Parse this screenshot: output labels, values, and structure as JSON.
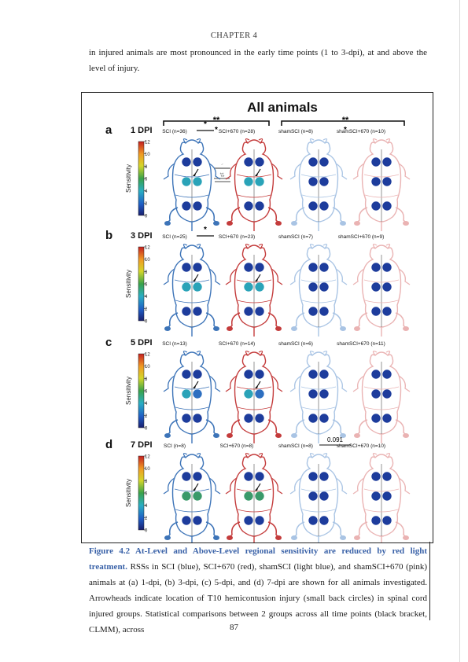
{
  "header": {
    "chapter": "CHAPTER 4"
  },
  "intro": {
    "text": "in injured animals are most pronounced in the early time points (1 to 3-dpi), at and above the level of injury."
  },
  "figure": {
    "title": "All animals",
    "top_signif": {
      "left_major": "**",
      "left_minor": "*",
      "right_major": "**",
      "right_minor": "*"
    },
    "colorbar": {
      "label": "Sensitivity",
      "ticks": [
        "12",
        "10",
        "8",
        "6",
        "4",
        "2",
        "0"
      ]
    },
    "panels": [
      {
        "letter": "a",
        "dpi": "1 DPI",
        "groups": [
          "SCI (n=36)",
          "SCI+670 (n=28)",
          "shamSCI (n=8)",
          "shamSCI+670 (n=10)"
        ],
        "pair_star": "*",
        "side_marks": [
          "·",
          "**"
        ],
        "pvalue": ""
      },
      {
        "letter": "b",
        "dpi": "3 DPI",
        "groups": [
          "SCI (n=25)",
          "SCI+670 (n=23)",
          "shamSCI (n=7)",
          "shamSCI+670 (n=9)"
        ],
        "pair_star": "*",
        "side_marks": [],
        "pvalue": ""
      },
      {
        "letter": "c",
        "dpi": "5 DPI",
        "groups": [
          "SCI (n=13)",
          "SCI+670 (n=14)",
          "shamSCI (n=6)",
          "shamSCI+670 (n=11)"
        ],
        "pair_star": "",
        "side_marks": [],
        "pvalue": ""
      },
      {
        "letter": "d",
        "dpi": "7 DPI",
        "groups": [
          "SCI (n=8)",
          "SCI+670 (n=8)",
          "shamSCI (n=8)",
          "shamSCI+670 (n=10)"
        ],
        "pair_star": "",
        "side_marks": [],
        "pvalue": "0.091"
      }
    ],
    "colors": {
      "sci": "#3d74b8",
      "sci670": "#c43c3c",
      "sham": "#a9c4e4",
      "sham670": "#eab3b3",
      "dark_dot": "#1d3c9c",
      "mid_dot": "#2d6fc0",
      "teal_dot": "#2aa3b8",
      "green_dot": "#3a9a6a"
    }
  },
  "caption": {
    "title": "Figure 4.2 At-Level and Above-Level regional sensitivity are reduced by red light treatment.",
    "body": "RSSs in SCI (blue), SCI+670 (red), shamSCI (light blue), and shamSCI+670 (pink) animals at (a) 1-dpi, (b) 3-dpi, (c) 5-dpi, and (d) 7-dpi are shown for all animals investigated. Arrowheads indicate location of T10 hemicontusion injury (small back circles) in spinal cord injured groups. Statistical comparisons between 2 groups across all time points (black bracket, CLMM), across"
  },
  "page_number": "87"
}
